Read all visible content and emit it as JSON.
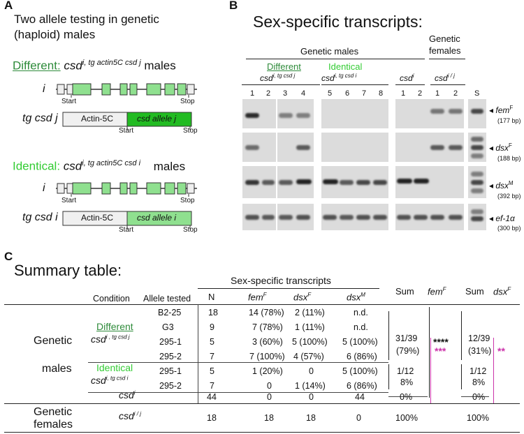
{
  "panelA": {
    "label": "A",
    "title_line1": "Two allele testing in genetic",
    "title_line2": "(haploid) males",
    "different_label": "Different:",
    "different_geno": "csd",
    "different_sup": "i, tg actin5C csd j",
    "different_suffix": "males",
    "identical_label": "Identical:",
    "identical_geno": "csd",
    "identical_sup": "i, tg actin5C csd i",
    "identical_suffix": "males",
    "row_i": "i",
    "row_tgj": "tg csd j",
    "row_tgi": "tg csd i",
    "start": "Start",
    "stop": "Stop",
    "actin": "Actin-5C",
    "allele_j": "csd allele j",
    "allele_i": "csd allele i"
  },
  "panelB": {
    "label": "B",
    "title": "Sex-specific transcripts:",
    "genetic_males": "Genetic males",
    "genetic_females_1": "Genetic",
    "genetic_females_2": "females",
    "different": "Different",
    "identical": "Identical",
    "geno_diff": "csd",
    "geno_diff_sup": "i, tg csd j",
    "geno_ident": "csd",
    "geno_ident_sup": "i, tg csd i",
    "geno_csdi": "csd",
    "geno_csdi_sup": "i",
    "geno_fem": "csd",
    "geno_fem_sup": "i / j",
    "lanes": [
      "1",
      "2",
      "3",
      "4",
      "5",
      "6",
      "7",
      "8",
      "1",
      "2",
      "1",
      "2",
      "S"
    ],
    "markers": [
      {
        "name": "fem",
        "sup": "F",
        "size": "(177 bp)"
      },
      {
        "name": "dsx",
        "sup": "F",
        "size": "(188 bp)"
      },
      {
        "name": "dsx",
        "sup": "M",
        "size": "(392 bp)"
      },
      {
        "name": "ef-1α",
        "sup": "",
        "size": "(300 bp)"
      }
    ]
  },
  "panelC": {
    "label": "C",
    "title": "Summary table:",
    "header_group": "Sex-specific transcripts",
    "headers": {
      "condition": "Condition",
      "allele": "Allele tested",
      "n": "N",
      "fem": "fem",
      "fem_sup": "F",
      "dsxf": "dsx",
      "dsxf_sup": "F",
      "dsxm": "dsx",
      "dsxm_sup": "M",
      "sum1": "Sum",
      "sum1_gene": "fem",
      "sum1_sup": "F",
      "sum2": "Sum",
      "sum2_gene": "dsx",
      "sum2_sup": "F"
    },
    "group_genetic": "Genetic",
    "group_males": "males",
    "group_females_1": "Genetic",
    "group_females_2": "females",
    "different": "Different",
    "identical": "Identical",
    "geno_diff": "csd",
    "geno_diff_sup": "i ,  tg csd j",
    "geno_ident": "csd",
    "geno_ident_sup": "i, tg csd i",
    "geno_csdi": "csd",
    "geno_csdi_sup": "i",
    "geno_fem": "csd",
    "geno_fem_sup": "i / j",
    "rows": [
      {
        "allele": "B2-25",
        "n": "18",
        "fem": "14 (78%)",
        "dsxf": "2 (11%)",
        "dsxm": "n.d."
      },
      {
        "allele": "G3",
        "n": "9",
        "fem": "7 (78%)",
        "dsxf": "1 (11%)",
        "dsxm": "n.d."
      },
      {
        "allele": "295-1",
        "n": "5",
        "fem": "3 (60%)",
        "dsxf": "5 (100%)",
        "dsxm": "5 (100%)"
      },
      {
        "allele": "295-2",
        "n": "7",
        "fem": "7 (100%)",
        "dsxf": "4 (57%)",
        "dsxm": "6 (86%)"
      },
      {
        "allele": "295-1",
        "n": "5",
        "fem": "1 (20%)",
        "dsxf": "0",
        "dsxm": "5 (100%)"
      },
      {
        "allele": "295-2",
        "n": "7",
        "fem": "0",
        "dsxf": "1 (14%)",
        "dsxm": "6 (86%)"
      },
      {
        "allele": "",
        "n": "44",
        "fem": "0",
        "dsxf": "0",
        "dsxm": "44"
      },
      {
        "allele": "",
        "n": "18",
        "fem": "18",
        "dsxf": "18",
        "dsxm": "0"
      }
    ],
    "sum_fem": [
      "31/39",
      "(79%)",
      "1/12",
      "8%",
      "0%",
      "100%"
    ],
    "sum_dsx": [
      "12/39",
      "(31%)",
      "1/12",
      "8%",
      "0%",
      "100%"
    ],
    "stars_black": "****",
    "stars_mag1": "***",
    "stars_mag2": "**"
  }
}
